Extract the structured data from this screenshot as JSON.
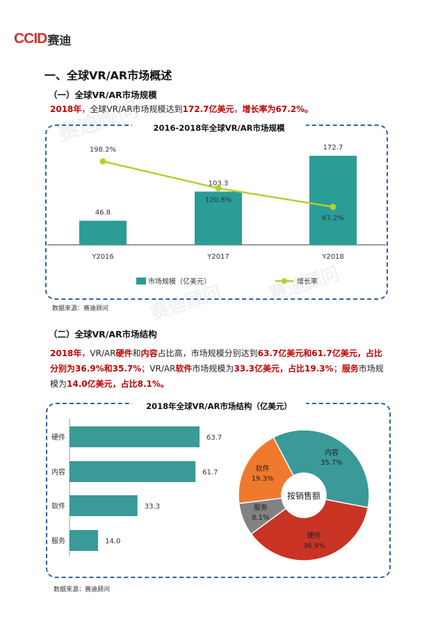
{
  "logo": {
    "latin": "CCID",
    "cn": "赛迪"
  },
  "section1": {
    "heading": "一、全球VR/AR市场概述"
  },
  "sub1": {
    "heading": "（一）全球VR/AR市场规模",
    "para": [
      {
        "text": "2018年",
        "red": true
      },
      {
        "text": "，全球VR/AR市场规模达到",
        "red": false
      },
      {
        "text": "172.7亿美元",
        "red": true
      },
      {
        "text": "，",
        "red": false
      },
      {
        "text": "增长率为67.2%。",
        "red": true
      }
    ]
  },
  "chart1": {
    "title": "2016-2018年全球VR/AR市场规模",
    "source": "数据来源：赛迪顾问",
    "colors": {
      "bar": "#2a9d96",
      "line": "#b5cf2e"
    },
    "chart_data": {
      "type": "bar",
      "categories": [
        "Y2016",
        "Y2017",
        "Y2018"
      ],
      "series": [
        {
          "name": "市场规模（亿美元）",
          "type": "bar",
          "values": [
            46.8,
            103.3,
            172.7
          ],
          "labels": [
            "46.8",
            "103.3",
            "172.7"
          ]
        },
        {
          "name": "增长率",
          "type": "line",
          "values": [
            198.2,
            120.8,
            67.2
          ],
          "labels": [
            "198.2%",
            "120.8%",
            "67.2%"
          ]
        }
      ],
      "legend": "bottom"
    }
  },
  "sub2": {
    "heading": "（二）全球VR/AR市场结构",
    "lines": [
      [
        {
          "text": "2018年",
          "red": true
        },
        {
          "text": "，VR/AR",
          "red": false
        },
        {
          "text": "硬件",
          "red": true
        },
        {
          "text": "和",
          "red": false
        },
        {
          "text": "内容",
          "red": true
        },
        {
          "text": "占比高，市场规模分别达到",
          "red": false
        },
        {
          "text": "63.7亿美元和61.7亿美元，占比",
          "red": true
        }
      ],
      [
        {
          "text": "分别为36.9%和35.7%",
          "red": true
        },
        {
          "text": "；VR/AR",
          "red": false
        },
        {
          "text": "软件",
          "red": true
        },
        {
          "text": "市场规模为",
          "red": false
        },
        {
          "text": "33.3亿美元，占比19.3%",
          "red": true
        },
        {
          "text": "；",
          "red": false
        },
        {
          "text": "服务",
          "red": true
        },
        {
          "text": "市场规",
          "red": false
        }
      ],
      [
        {
          "text": "模为",
          "red": false
        },
        {
          "text": "14.0亿美元，占比8.1%。",
          "red": true
        }
      ]
    ]
  },
  "chart2": {
    "title": "2018年全球VR/AR市场结构（亿美元）",
    "source": "数据来源：赛迪顾问",
    "center_label": "按销售额",
    "colors": {
      "bar": "#3a9a97",
      "pie": [
        "#c93324",
        "#828282",
        "#ef7a2d",
        "#3a9a97"
      ]
    },
    "chart_data": [
      {
        "type": "bar",
        "orientation": "horizontal",
        "categories": [
          "硬件",
          "内容",
          "软件",
          "服务"
        ],
        "values": [
          63.7,
          61.7,
          33.3,
          14.0
        ],
        "labels": [
          "63.7",
          "61.7",
          "33.3",
          "14.0"
        ]
      },
      {
        "type": "pie",
        "donut": true,
        "categories": [
          "硬件",
          "服务",
          "软件",
          "内容"
        ],
        "values": [
          36.9,
          8.1,
          19.3,
          35.7
        ],
        "labels": [
          "36.9%",
          "8.1%",
          "19.3%",
          "35.7%"
        ]
      }
    ]
  }
}
